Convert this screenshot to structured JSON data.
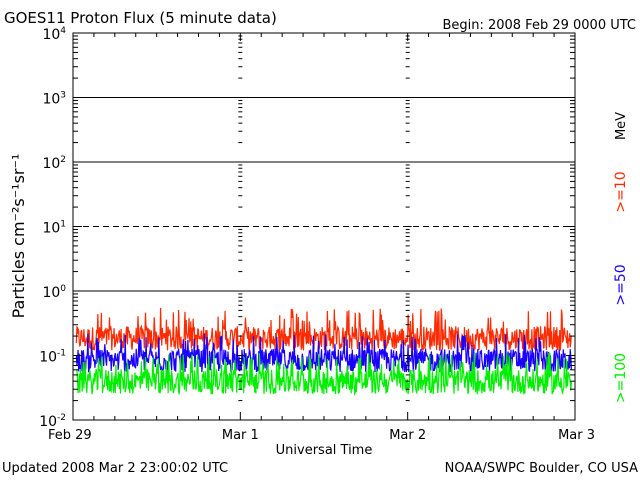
{
  "header": {
    "title": "GOES11 Proton Flux (5 minute data)",
    "begin": "Begin: 2008 Feb 29 0000 UTC"
  },
  "footer": {
    "updated": "Updated 2008 Mar  2 23:00:02 UTC",
    "source": "NOAA/SWPC Boulder, CO USA"
  },
  "chart_data": {
    "type": "line",
    "title": "GOES11 Proton Flux (5 minute data)",
    "xlabel": "Universal Time",
    "ylabel": "Particles cm⁻²s⁻¹sr⁻¹",
    "yscale": "log",
    "ylim": [
      0.01,
      10000
    ],
    "xlim": [
      "2008-02-29 00:00",
      "2008-03-03 00:00"
    ],
    "x_ticks": [
      "Feb 29",
      "Mar 1",
      "Mar 2",
      "Mar 3"
    ],
    "y_ticks": [
      {
        "value": 0.01,
        "base": "10",
        "exp": "-2"
      },
      {
        "value": 0.1,
        "base": "10",
        "exp": "-1"
      },
      {
        "value": 1,
        "base": "10",
        "exp": "0"
      },
      {
        "value": 10,
        "base": "10",
        "exp": "1"
      },
      {
        "value": 100,
        "base": "10",
        "exp": "2"
      },
      {
        "value": 1000,
        "base": "10",
        "exp": "3"
      },
      {
        "value": 10000,
        "base": "10",
        "exp": "4"
      }
    ],
    "unit_label": "MeV",
    "grid": {
      "solid": [
        1,
        100,
        1000
      ],
      "dashed": [
        10
      ]
    },
    "series": [
      {
        "name": ">=10",
        "color": "#ff2a00",
        "typical": 0.2,
        "low": 0.12,
        "high": 0.55
      },
      {
        "name": ">=50",
        "color": "#1a00ff",
        "typical": 0.095,
        "low": 0.055,
        "high": 0.22
      },
      {
        "name": ">=100",
        "color": "#00ee00",
        "typical": 0.045,
        "low": 0.025,
        "high": 0.11
      }
    ]
  }
}
